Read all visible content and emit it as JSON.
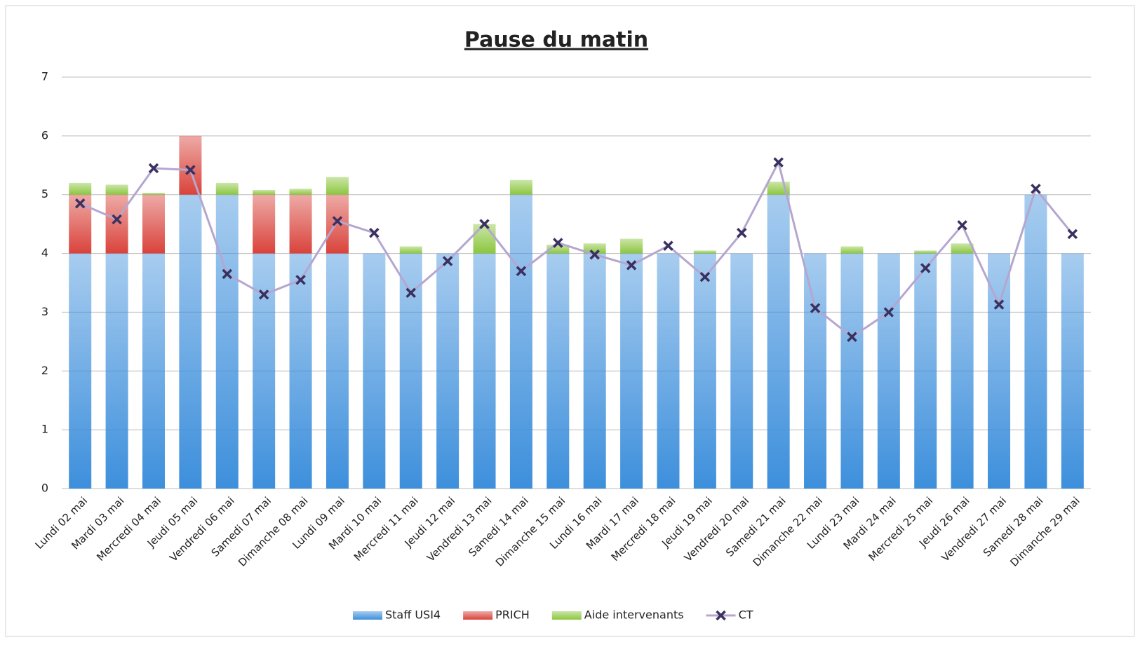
{
  "chart_data": {
    "type": "bar",
    "stacked": true,
    "title": "Pause du matin",
    "categories": [
      "Lundi 02 mai",
      "Mardi 03 mai",
      "Mercredi 04 mai",
      "Jeudi 05 mai",
      "Vendredi 06 mai",
      "Samedi 07 mai",
      "Dimanche 08 mai",
      "Lundi 09 mai",
      "Mardi 10 mai",
      "Mercredi 11 mai",
      "Jeudi 12 mai",
      "Vendredi 13 mai",
      "Samedi 14 mai",
      "Dimanche 15 mai",
      "Lundi 16 mai",
      "Mardi 17 mai",
      "Mercredi 18 mai",
      "Jeudi 19 mai",
      "Vendredi 20 mai",
      "Samedi 21 mai",
      "Dimanche 22 mai",
      "Lundi 23 mai",
      "Mardi 24 mai",
      "Mercredi 25 mai",
      "Jeudi 26 mai",
      "Vendredi 27 mai",
      "Samedi 28 mai",
      "Dimanche 29 mai"
    ],
    "series": [
      {
        "name": "Staff USI4",
        "color": "#3d8fdc",
        "values": [
          4,
          4,
          4,
          5,
          5,
          4,
          4,
          4,
          4,
          4,
          4,
          4,
          5,
          4,
          4,
          4,
          4,
          4,
          4,
          5,
          4,
          4,
          4,
          4,
          4,
          4,
          5,
          4
        ]
      },
      {
        "name": "PRICH",
        "color": "#d9433b",
        "values": [
          1,
          1,
          1,
          1,
          0,
          1,
          1,
          1,
          0,
          0,
          0,
          0,
          0,
          0,
          0,
          0,
          0,
          0,
          0,
          0,
          0,
          0,
          0,
          0,
          0,
          0,
          0,
          0
        ]
      },
      {
        "name": "Aide intervenants",
        "color": "#8cc63f",
        "values": [
          0.2,
          0.17,
          0.03,
          0,
          0.2,
          0.08,
          0.1,
          0.3,
          0,
          0.12,
          0,
          0.5,
          0.25,
          0.15,
          0.17,
          0.25,
          0,
          0.05,
          0,
          0.22,
          0,
          0.12,
          0,
          0.05,
          0.17,
          0,
          0,
          0
        ]
      },
      {
        "name": "CT",
        "type": "line",
        "color": "#b5a6d0",
        "marker_color": "#3a3160",
        "values": [
          4.85,
          4.58,
          5.45,
          5.42,
          3.65,
          3.3,
          3.55,
          4.55,
          4.35,
          3.33,
          3.87,
          4.5,
          3.7,
          4.18,
          3.98,
          3.8,
          4.13,
          3.6,
          4.35,
          5.55,
          3.07,
          2.58,
          3.0,
          3.75,
          4.48,
          3.13,
          5.1,
          4.33
        ]
      }
    ],
    "ylim": [
      0,
      7
    ],
    "yticks": [
      0,
      1,
      2,
      3,
      4,
      5,
      6,
      7
    ],
    "grid": true,
    "legend": "bottom"
  }
}
